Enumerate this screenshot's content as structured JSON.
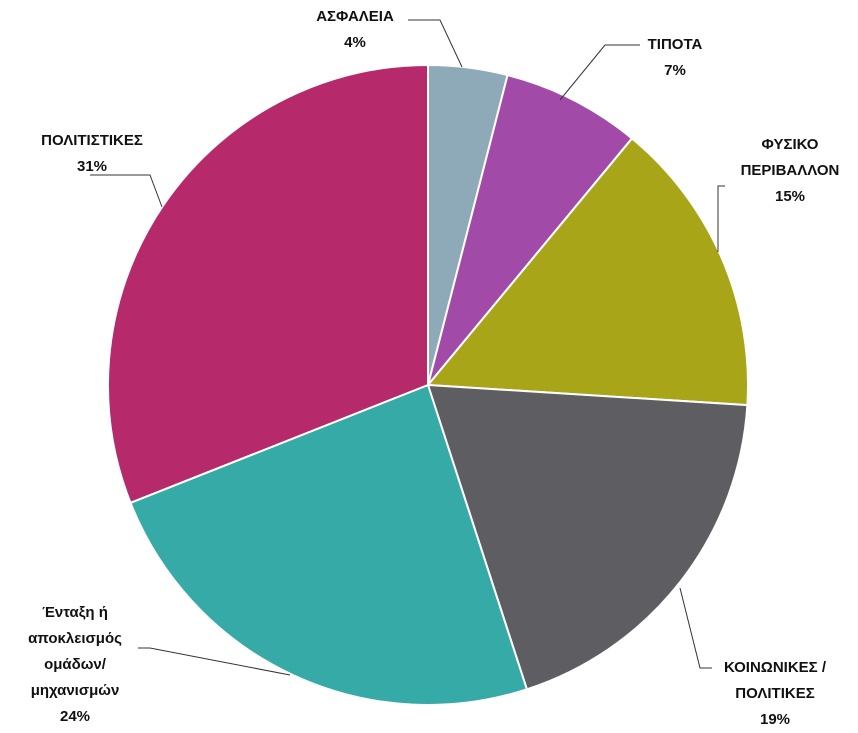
{
  "chart_data": {
    "type": "pie",
    "categories": [
      "ΑΣΦΑΛΕΙΑ",
      "ΤΙΠΟΤΑ",
      "ΦΥΣΙΚΟ\nΠΕΡΙΒΑΛΛΟΝ",
      "ΚΟΙΝΩΝΙΚΕΣ /\nΠΟΛΙΤΙΚΕΣ",
      "Ένταξη ή\nαποκλεισμός\nομάδων/\nμηχανισμών",
      "ΠΟΛΙΤΙΣΤΙΚΕΣ"
    ],
    "values": [
      4,
      7,
      15,
      19,
      24,
      31
    ],
    "value_labels": [
      "4%",
      "7%",
      "15%",
      "19%",
      "24%",
      "31%"
    ],
    "colors": [
      "#8eaab9",
      "#a24aa8",
      "#a8a519",
      "#5e5e62",
      "#35aaa7",
      "#b62a6b"
    ]
  }
}
